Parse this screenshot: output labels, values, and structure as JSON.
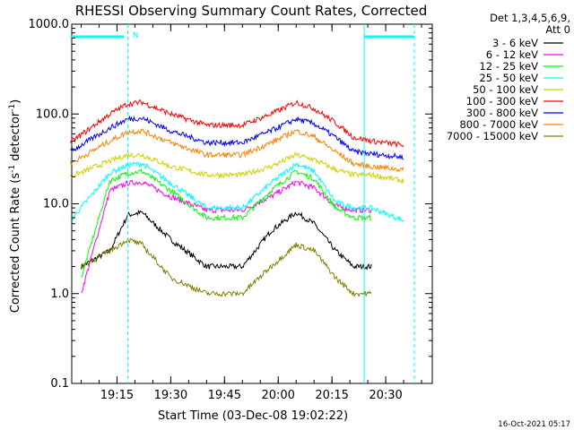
{
  "chart_data": {
    "type": "line",
    "title": "RHESSI Observing Summary Count Rates, Corrected",
    "xlabel": "Start Time (03-Dec-08 19:02:22)",
    "ylabel": "Corrected Count Rate (s",
    "ylabel_sup1": "-1",
    "ylabel_mid": " detector",
    "ylabel_sup2": "-1",
    "ylabel_end": ")",
    "y_scale": "log",
    "ylim": [
      0.1,
      1000
    ],
    "y_ticks": [
      0.1,
      1.0,
      10.0,
      100.0,
      1000.0
    ],
    "y_tick_labels": [
      "0.1",
      "1.0",
      "10.0",
      "100.0",
      "1000.0"
    ],
    "x_range_minutes": [
      "19:02",
      "20:38"
    ],
    "x_ticks": [
      "19:15",
      "19:30",
      "19:45",
      "20:00",
      "20:15",
      "20:30"
    ],
    "grid": false,
    "legend_placement": "right",
    "legend_header": [
      "Det 1,3,4,5,6,9,",
      "Att 0"
    ],
    "flag_label": "N",
    "footer_timestamp": "16-Oct-2021 05:17",
    "series": [
      {
        "name": "3 - 6 keV",
        "color": "#000000",
        "x": [
          "19:05",
          "19:13",
          "19:18",
          "19:22",
          "19:30",
          "19:40",
          "19:50",
          "19:58",
          "20:05",
          "20:10",
          "20:16",
          "20:21",
          "20:26"
        ],
        "y": [
          2.0,
          3.0,
          7.5,
          8.0,
          4.0,
          2.0,
          2.0,
          5.0,
          8.0,
          6.0,
          3.0,
          2.0,
          2.0
        ]
      },
      {
        "name": "6 - 12 keV",
        "color": "#ff00ff",
        "x": [
          "19:05",
          "19:13",
          "19:18",
          "19:22",
          "19:30",
          "19:40",
          "19:50",
          "19:58",
          "20:05",
          "20:10",
          "20:16",
          "20:21",
          "20:26"
        ],
        "y": [
          1.0,
          14.0,
          17.0,
          17.5,
          12.0,
          8.5,
          8.5,
          12.0,
          17.5,
          15.0,
          9.5,
          8.5,
          8.5
        ]
      },
      {
        "name": "12 - 25 keV",
        "color": "#00ff00",
        "x": [
          "19:05",
          "19:13",
          "19:18",
          "19:22",
          "19:30",
          "19:40",
          "19:50",
          "19:58",
          "20:05",
          "20:10",
          "20:16",
          "20:21",
          "20:26"
        ],
        "y": [
          1.5,
          18.0,
          22.0,
          23.0,
          14.0,
          7.0,
          7.0,
          14.0,
          23.0,
          19.0,
          9.0,
          7.0,
          7.0
        ]
      },
      {
        "name": "25 - 50 keV",
        "color": "#00ffff",
        "x": [
          "19:02",
          "19:13",
          "19:18",
          "19:22",
          "19:30",
          "19:40",
          "19:50",
          "19:58",
          "20:05",
          "20:10",
          "20:16",
          "20:21",
          "20:26",
          "20:35"
        ],
        "y": [
          6.5,
          22.0,
          27.0,
          28.0,
          17.0,
          9.0,
          9.0,
          17.0,
          28.0,
          23.0,
          10.5,
          9.0,
          9.0,
          6.5
        ]
      },
      {
        "name": "50 - 100 keV",
        "color": "#d0d000",
        "x": [
          "19:02",
          "19:13",
          "19:18",
          "19:22",
          "19:30",
          "19:40",
          "19:50",
          "19:58",
          "20:05",
          "20:10",
          "20:16",
          "20:21",
          "20:26",
          "20:35"
        ],
        "y": [
          20.0,
          30.0,
          35.0,
          35.0,
          26.0,
          21.0,
          21.0,
          26.0,
          35.0,
          31.0,
          24.0,
          21.0,
          21.0,
          18.0
        ]
      },
      {
        "name": "100 - 300 keV",
        "color": "#ff0000",
        "x": [
          "19:02",
          "19:13",
          "19:18",
          "19:22",
          "19:30",
          "19:40",
          "19:50",
          "19:58",
          "20:05",
          "20:10",
          "20:16",
          "20:21",
          "20:26",
          "20:35"
        ],
        "y": [
          48.0,
          100.0,
          130.0,
          135.0,
          100.0,
          75.0,
          75.0,
          100.0,
          135.0,
          115.0,
          80.0,
          55.0,
          50.0,
          45.0
        ]
      },
      {
        "name": "300 - 800 keV",
        "color": "#0000ff",
        "x": [
          "19:02",
          "19:13",
          "19:18",
          "19:22",
          "19:30",
          "19:40",
          "19:50",
          "19:58",
          "20:05",
          "20:10",
          "20:16",
          "20:21",
          "20:26",
          "20:35"
        ],
        "y": [
          38.0,
          70.0,
          88.0,
          90.0,
          65.0,
          48.0,
          48.0,
          65.0,
          88.0,
          78.0,
          55.0,
          38.0,
          36.0,
          33.0
        ]
      },
      {
        "name": "800 - 7000 keV",
        "color": "#ff8000",
        "x": [
          "19:02",
          "19:13",
          "19:18",
          "19:22",
          "19:30",
          "19:40",
          "19:50",
          "19:58",
          "20:05",
          "20:10",
          "20:16",
          "20:21",
          "20:26",
          "20:35"
        ],
        "y": [
          28.0,
          50.0,
          63.0,
          65.0,
          48.0,
          35.0,
          35.0,
          48.0,
          65.0,
          56.0,
          38.0,
          28.0,
          26.0,
          24.0
        ]
      },
      {
        "name": "7000 - 15000 keV",
        "color": "#808000",
        "x": [
          "19:05",
          "19:13",
          "19:18",
          "19:22",
          "19:30",
          "19:40",
          "19:50",
          "19:58",
          "20:05",
          "20:10",
          "20:16",
          "20:21",
          "20:26"
        ],
        "y": [
          2.0,
          3.0,
          4.0,
          3.5,
          1.5,
          1.0,
          1.0,
          2.0,
          3.5,
          3.0,
          1.5,
          1.0,
          1.0
        ]
      }
    ],
    "vertical_markers": [
      {
        "time": "19:18",
        "style": "dashed",
        "color": "#00ffff"
      },
      {
        "time": "20:24",
        "style": "solid",
        "color": "#00ffff"
      },
      {
        "time": "20:38",
        "style": "dashed",
        "color": "#00ffff"
      }
    ],
    "flag_bars": [
      {
        "from": "19:02",
        "to": "19:17",
        "color": "#00ffff"
      },
      {
        "from": "20:24",
        "to": "20:38",
        "color": "#00ffff"
      }
    ]
  }
}
